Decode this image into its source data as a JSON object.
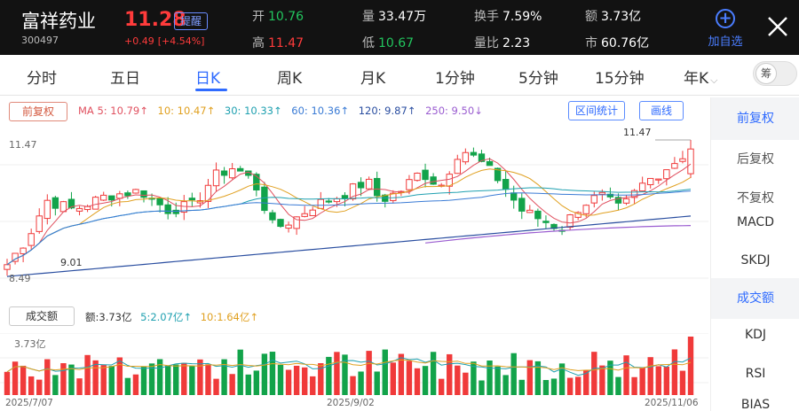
{
  "header": {
    "name": "富祥药业",
    "code": "300497",
    "price": "11.28",
    "remind": "提醒",
    "change": "+0.49",
    "change_pct": "[+4.54%]",
    "quotes": [
      {
        "label": "开",
        "value": "10.76",
        "color": "green"
      },
      {
        "label": "量",
        "value": "33.47万",
        "color": "white"
      },
      {
        "label": "换手",
        "value": "7.59%",
        "color": "white"
      },
      {
        "label": "额",
        "value": "3.73亿",
        "color": "white"
      },
      {
        "label": "高",
        "value": "11.47",
        "color": "red"
      },
      {
        "label": "低",
        "value": "10.67",
        "color": "green"
      },
      {
        "label": "量比",
        "value": "2.23",
        "color": "white"
      },
      {
        "label": "市",
        "value": "60.76亿",
        "color": "white"
      }
    ],
    "add_fav": "加自选"
  },
  "tabs": [
    "分时",
    "五日",
    "日K",
    "周K",
    "月K",
    "1分钟",
    "5分钟",
    "15分钟",
    "年K"
  ],
  "active_tab": "日K",
  "toggle_label": "筹",
  "chart": {
    "adjust_btn": "前复权",
    "ma": [
      {
        "text": "MA 5: 10.79↑",
        "color": "#e0505f"
      },
      {
        "text": "10: 10.47↑",
        "color": "#e0a020"
      },
      {
        "text": "30: 10.33↑",
        "color": "#1fa0b0"
      },
      {
        "text": "60: 10.36↑",
        "color": "#3a7bd5"
      },
      {
        "text": "120: 9.87↑",
        "color": "#2a4ea0"
      },
      {
        "text": "250: 9.50↓",
        "color": "#9a5cd0"
      }
    ],
    "range_btn": "区间统计",
    "draw_btn": "画线",
    "y_max": "11.47",
    "y_min": "8.49",
    "low_label": "9.01",
    "high_label": "11.47",
    "volume_btn": "成交额",
    "volume_info": [
      {
        "text": "额:3.73亿",
        "color": "#333333"
      },
      {
        "text": "5:2.07亿↑",
        "color": "#1fa0b0"
      },
      {
        "text": "10:1.64亿↑",
        "color": "#e0a020"
      }
    ],
    "vol_max": "3.73亿",
    "dates": [
      "2025/7/07",
      "2025/9/02",
      "2025/11/06"
    ]
  },
  "side_panel": [
    "前复权",
    "后复权",
    "不复权",
    "MACD",
    "SKDJ",
    "成交额",
    "KDJ",
    "RSI",
    "BIAS"
  ],
  "side_highlight": [
    "前复权",
    "成交额"
  ],
  "chart_data": {
    "type": "candlestick",
    "x_start": "2025/7/07",
    "x_end": "2025/11/06",
    "ylim": [
      8.49,
      11.47
    ],
    "last": {
      "open": 10.76,
      "high": 11.47,
      "low": 10.67,
      "close": 11.28
    },
    "ma_last": {
      "ma5": 10.79,
      "ma10": 10.47,
      "ma30": 10.33,
      "ma60": 10.36,
      "ma120": 9.87,
      "ma250": 9.5
    }
  }
}
